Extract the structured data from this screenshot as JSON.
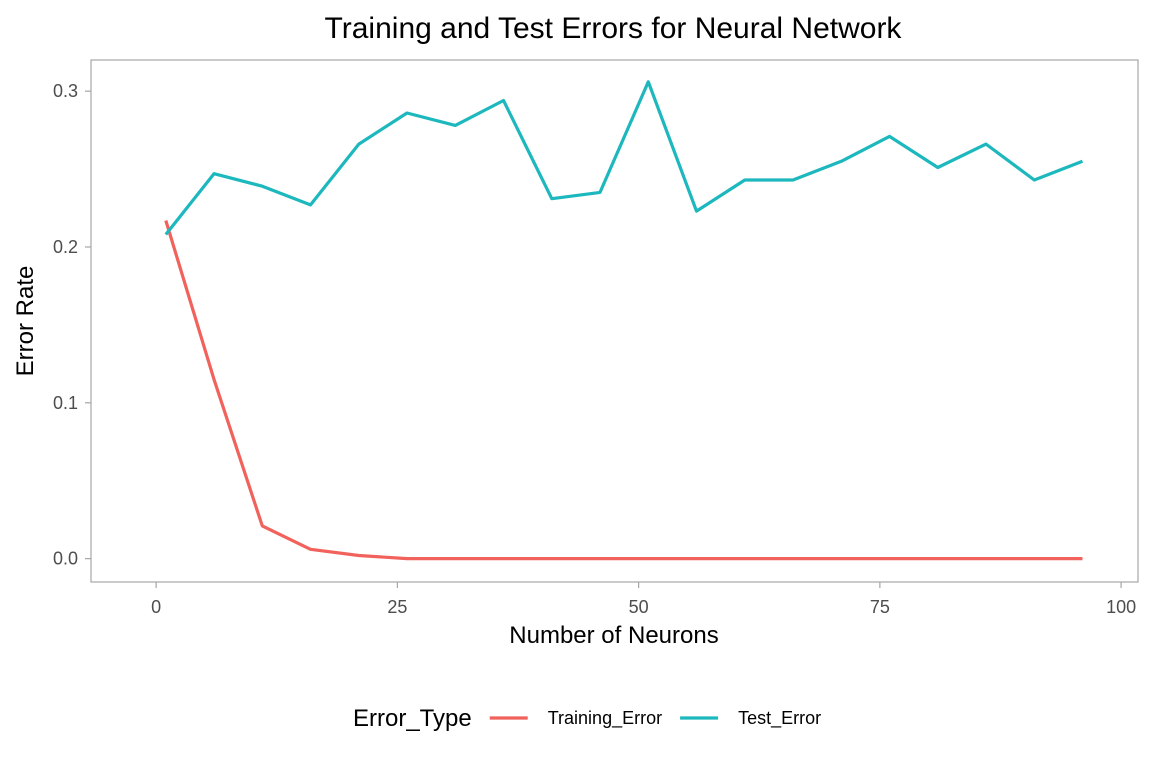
{
  "chart_data": {
    "type": "line",
    "title": "Training and Test Errors for Neural Network",
    "xlabel": "Number of Neurons",
    "ylabel": "Error Rate",
    "xlim": [
      -6.75,
      101.75
    ],
    "ylim": [
      -0.015,
      0.32
    ],
    "x_ticks": [
      0,
      25,
      50,
      75,
      100
    ],
    "x_tick_labels": [
      "0",
      "25",
      "50",
      "75",
      "100"
    ],
    "y_ticks": [
      0.0,
      0.1,
      0.2,
      0.3
    ],
    "y_tick_labels": [
      "0.0",
      "0.1",
      "0.2",
      "0.3"
    ],
    "grid": false,
    "legend": {
      "title": "Error_Type",
      "position": "bottom"
    },
    "x": [
      1,
      6,
      11,
      16,
      21,
      26,
      31,
      36,
      41,
      46,
      51,
      56,
      61,
      66,
      71,
      76,
      81,
      86,
      91,
      96
    ],
    "series": [
      {
        "name": "Training_Error",
        "color": "#F0625B",
        "values": [
          0.217,
          0.115,
          0.021,
          0.006,
          0.002,
          0.0,
          0.0,
          0.0,
          0.0,
          0.0,
          0.0,
          0.0,
          0.0,
          0.0,
          0.0,
          0.0,
          0.0,
          0.0,
          0.0,
          0.0
        ]
      },
      {
        "name": "Test_Error",
        "color": "#1DB8BE",
        "values": [
          0.208,
          0.247,
          0.239,
          0.227,
          0.266,
          0.286,
          0.278,
          0.294,
          0.231,
          0.235,
          0.306,
          0.223,
          0.243,
          0.243,
          0.255,
          0.271,
          0.251,
          0.266,
          0.243,
          0.255
        ]
      }
    ]
  }
}
